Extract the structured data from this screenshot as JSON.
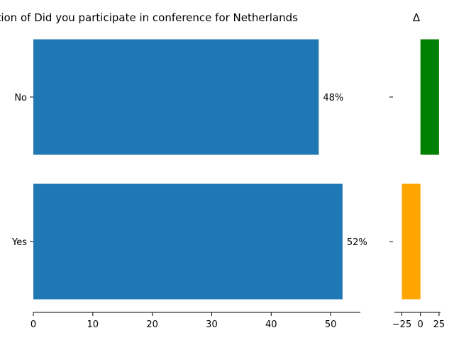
{
  "chart_data": [
    {
      "type": "bar",
      "orientation": "horizontal",
      "title": "Current proportion of Did you participate in conference for Netherlands",
      "categories": [
        "No",
        "Yes"
      ],
      "values": [
        48,
        52
      ],
      "value_labels": [
        "48%",
        "52%"
      ],
      "xlim": [
        0,
        55
      ],
      "xticks": [
        0,
        10,
        20,
        30,
        40,
        50
      ],
      "bar_color": "#1f77b4",
      "grid": false
    },
    {
      "type": "bar",
      "orientation": "horizontal",
      "title": "Δ",
      "categories": [
        "No",
        "Yes"
      ],
      "values": [
        25,
        -25
      ],
      "bar_colors": [
        "#008000",
        "#ffa500"
      ],
      "xlim": [
        -35,
        27
      ],
      "xticks": [
        -25,
        0,
        25
      ],
      "tick_labels": [
        "−25",
        "0",
        "25"
      ],
      "grid": false
    }
  ]
}
